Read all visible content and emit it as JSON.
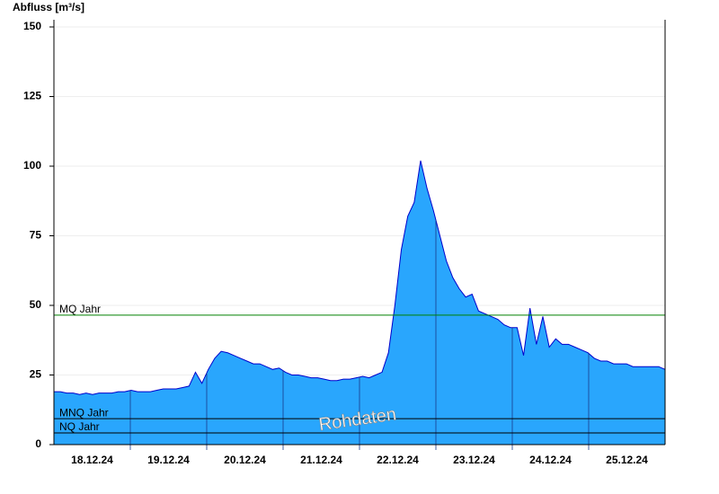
{
  "chart_data": {
    "type": "area",
    "y_label": "Abfluss [m³/s]",
    "annotation": "Rohdaten",
    "categories": [
      "18.12.24",
      "19.12.24",
      "20.12.24",
      "21.12.24",
      "22.12.24",
      "23.12.24",
      "24.12.24",
      "25.12.24"
    ],
    "series": [
      {
        "color": "#29a6fd",
        "line_color": "#0000cc",
        "values": [
          [
            19,
            19,
            18.5,
            18.5,
            18,
            18.5,
            18,
            18.5,
            18.5,
            18.5,
            19,
            19
          ],
          [
            19.5,
            19,
            19,
            19,
            19.5,
            20,
            20,
            20,
            20.5,
            21,
            26,
            22
          ],
          [
            27,
            31,
            33.5,
            33,
            32,
            31,
            30,
            29,
            29,
            28,
            27,
            27.5
          ],
          [
            26,
            25,
            25,
            24.5,
            24,
            24,
            23.5,
            23,
            23,
            23.5,
            23.5,
            24
          ],
          [
            24.5,
            24,
            25,
            26,
            33,
            50,
            70,
            82,
            87,
            102,
            92,
            84
          ],
          [
            75,
            66,
            60,
            56,
            53,
            54,
            48,
            47,
            46,
            45,
            43,
            42
          ],
          [
            42,
            32,
            49,
            36,
            46,
            35,
            38,
            36,
            36,
            35,
            34,
            33
          ],
          [
            31,
            30,
            30,
            29,
            29,
            29,
            28,
            28,
            28,
            28,
            28,
            27
          ]
        ]
      }
    ],
    "reference_lines": [
      {
        "label": "MQ Jahr",
        "value": 46.5,
        "color": "#008000"
      },
      {
        "label": "MNQ Jahr",
        "value": 9.3,
        "color": "#000000"
      },
      {
        "label": "NQ Jahr",
        "value": 4.2,
        "color": "#000000"
      }
    ],
    "ylim": [
      0,
      150
    ],
    "yticks": [
      0,
      25,
      50,
      75,
      100,
      125,
      150
    ],
    "grid": true
  }
}
